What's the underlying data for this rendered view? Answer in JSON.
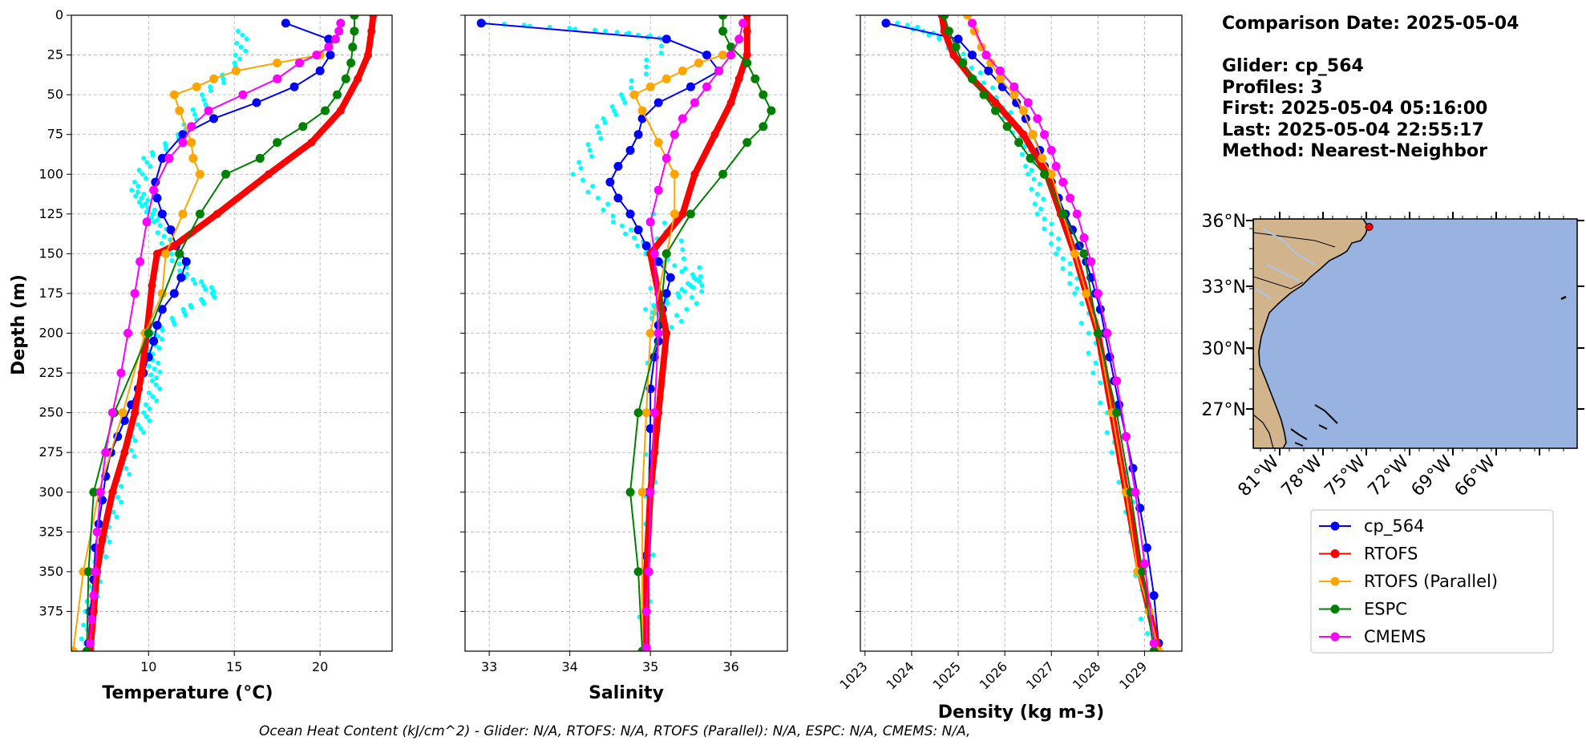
{
  "info": {
    "comparison_date": "Comparison Date: 2025-05-04",
    "glider": "Glider: cp_564",
    "profiles": "Profiles: 3",
    "first": "First: 2025-05-04 05:16:00",
    "last": "Last: 2025-05-04 22:55:17",
    "method": "Method: Nearest-Neighbor"
  },
  "ohc_text": "Ocean Heat Content (kJ/cm^2) - Glider: N/A,  RTOFS: N/A,  RTOFS (Parallel): N/A,  ESPC: N/A,  CMEMS: N/A,",
  "colors": {
    "cp_564": "#0000ff",
    "RTOFS": "#ff0000",
    "RTOFS (Parallel)": "#ffa500",
    "ESPC": "#008000",
    "CMEMS": "#ff00ff",
    "glider_raw": "#00ffff",
    "ocean": "#99b3e0",
    "land": "#d2b48c",
    "river": "#aac4ee"
  },
  "legend": [
    "cp_564",
    "RTOFS",
    "RTOFS (Parallel)",
    "ESPC",
    "CMEMS"
  ],
  "map": {
    "lat_labels": [
      "36°N",
      "33°N",
      "30°N",
      "27°N"
    ],
    "lon_labels": [
      "81°W",
      "78°W",
      "75°W",
      "72°W",
      "69°W",
      "66°W"
    ],
    "glider_location": {
      "lon": -74.8,
      "lat": 35.7
    }
  },
  "chart_data": [
    {
      "type": "line",
      "xlabel": "Temperature (°C)",
      "ylabel": "Depth (m)",
      "xlim": [
        5.5,
        24.2
      ],
      "ylim": [
        400,
        0
      ],
      "xticks": [
        10,
        15,
        20
      ],
      "yticks": [
        0,
        25,
        50,
        75,
        100,
        125,
        150,
        175,
        200,
        225,
        250,
        275,
        300,
        325,
        350,
        375
      ],
      "grid": true,
      "glider_raw": {
        "name": "cp_564 raw",
        "x": [
          15.5,
          15.3,
          13.4,
          12.0,
          10.0,
          9.3,
          9.9,
          10.6,
          11.2,
          12.4,
          14.0,
          12.3,
          10.6,
          10.2,
          10.5,
          10.0,
          9.1,
          8.3,
          7.6,
          7.0,
          6.6,
          6.3
        ],
        "y": [
          10,
          30,
          50,
          75,
          90,
          110,
          120,
          130,
          148,
          165,
          175,
          185,
          200,
          215,
          230,
          250,
          270,
          300,
          325,
          350,
          375,
          398
        ]
      },
      "series": [
        {
          "name": "cp_564",
          "x": [
            18.0,
            20.5,
            20.6,
            20.0,
            18.5,
            16.3,
            13.8,
            12.0,
            10.8,
            10.4,
            10.5,
            10.8,
            11.3,
            11.6,
            12.2,
            11.9,
            11.5,
            10.8,
            10.5,
            10.3,
            10.0,
            9.7,
            9.4,
            9.0,
            8.6,
            8.2,
            7.8,
            7.5,
            7.3,
            7.1,
            6.9,
            6.8,
            6.6,
            6.5
          ],
          "y": [
            5,
            15,
            25,
            35,
            45,
            55,
            65,
            75,
            90,
            105,
            115,
            125,
            135,
            145,
            155,
            165,
            175,
            185,
            195,
            205,
            215,
            225,
            235,
            245,
            255,
            265,
            275,
            290,
            305,
            320,
            335,
            355,
            375,
            395
          ]
        },
        {
          "name": "RTOFS",
          "x": [
            23.1,
            23.0,
            22.8,
            22.2,
            21.2,
            19.5,
            17.0,
            14.0,
            11.5,
            10.5,
            10.2,
            9.9,
            9.6,
            9.2,
            8.6,
            7.9,
            7.3,
            7.0,
            6.8,
            6.6
          ],
          "y": [
            0,
            10,
            25,
            40,
            60,
            80,
            100,
            125,
            145,
            150,
            170,
            200,
            225,
            250,
            275,
            300,
            330,
            350,
            375,
            400
          ]
        },
        {
          "name": "RTOFS (Parallel)",
          "x": [
            20.0,
            17.5,
            15.1,
            13.8,
            12.8,
            11.5,
            11.8,
            12.5,
            12.6,
            13.0,
            12.0,
            11.0,
            10.8,
            9.8,
            8.5,
            7.1,
            6.2,
            5.6
          ],
          "y": [
            25,
            30,
            35,
            40,
            45,
            50,
            60,
            80,
            90,
            100,
            125,
            150,
            175,
            200,
            250,
            300,
            350,
            400
          ]
        },
        {
          "name": "ESPC",
          "x": [
            22.0,
            22.0,
            21.9,
            21.8,
            21.5,
            21.0,
            20.3,
            19.0,
            17.5,
            16.5,
            14.5,
            13.0,
            11.8,
            10.0,
            8.0,
            6.8,
            6.5,
            6.4
          ],
          "y": [
            0,
            10,
            20,
            30,
            40,
            50,
            60,
            70,
            80,
            90,
            100,
            125,
            150,
            200,
            250,
            300,
            350,
            400
          ]
        },
        {
          "name": "CMEMS",
          "x": [
            21.2,
            21.1,
            20.9,
            20.5,
            19.8,
            18.8,
            17.5,
            15.5,
            13.5,
            12.5,
            12.0,
            11.2,
            10.3,
            9.9,
            9.5,
            9.2,
            8.8,
            8.4,
            7.9,
            7.5,
            7.2,
            7.0,
            6.9,
            6.8,
            6.7,
            6.6
          ],
          "y": [
            5,
            10,
            15,
            20,
            25,
            30,
            40,
            50,
            60,
            70,
            80,
            90,
            110,
            130,
            155,
            175,
            200,
            225,
            250,
            275,
            300,
            325,
            350,
            365,
            380,
            395
          ]
        }
      ]
    },
    {
      "type": "line",
      "xlabel": "Salinity",
      "xlim": [
        32.7,
        36.7
      ],
      "ylim": [
        400,
        0
      ],
      "xticks": [
        33,
        34,
        35,
        36
      ],
      "grid": true,
      "glider_raw": {
        "name": "cp_564 raw",
        "x": [
          33.0,
          34.5,
          35.2,
          34.7,
          34.4,
          34.1,
          34.6,
          35.0,
          35.6,
          35.4,
          35.0,
          35.2,
          35.7,
          35.1,
          35.0,
          35.0,
          34.9
        ],
        "y": [
          5,
          10,
          15,
          50,
          70,
          100,
          130,
          150,
          165,
          175,
          185,
          200,
          170,
          125,
          250,
          320,
          398
        ]
      },
      "series": [
        {
          "name": "cp_564",
          "x": [
            32.9,
            35.2,
            35.7,
            35.85,
            35.5,
            35.1,
            34.9,
            34.85,
            34.75,
            34.6,
            34.5,
            34.6,
            34.75,
            34.85,
            34.95,
            35.1,
            35.25,
            35.2,
            35.15,
            35.1,
            35.1,
            35.05,
            35.0,
            35.0,
            34.98,
            34.95,
            34.95,
            34.95
          ],
          "y": [
            5,
            15,
            25,
            35,
            45,
            55,
            65,
            75,
            85,
            95,
            105,
            115,
            125,
            135,
            145,
            155,
            165,
            175,
            185,
            195,
            205,
            215,
            235,
            260,
            300,
            340,
            375,
            398
          ]
        },
        {
          "name": "RTOFS",
          "x": [
            36.2,
            36.2,
            36.2,
            36.1,
            36.0,
            35.8,
            35.55,
            35.4,
            35.0,
            35.1,
            35.2,
            35.1,
            35.05,
            35.0,
            34.95,
            34.95,
            34.95
          ],
          "y": [
            0,
            10,
            25,
            40,
            55,
            75,
            100,
            125,
            150,
            175,
            200,
            250,
            275,
            300,
            350,
            375,
            400
          ]
        },
        {
          "name": "RTOFS (Parallel)",
          "x": [
            35.9,
            35.6,
            35.4,
            35.2,
            35.0,
            34.8,
            34.9,
            35.1,
            35.3,
            35.3,
            35.2,
            35.0,
            34.95,
            34.9,
            34.9
          ],
          "y": [
            25,
            30,
            35,
            40,
            45,
            50,
            60,
            80,
            100,
            125,
            150,
            200,
            250,
            300,
            400
          ]
        },
        {
          "name": "ESPC",
          "x": [
            35.9,
            35.9,
            36.0,
            36.2,
            36.3,
            36.4,
            36.5,
            36.4,
            36.2,
            35.9,
            35.5,
            35.2,
            35.1,
            34.85,
            34.75,
            34.85,
            34.9
          ],
          "y": [
            0,
            10,
            20,
            30,
            40,
            50,
            60,
            70,
            80,
            100,
            125,
            150,
            200,
            250,
            300,
            350,
            400
          ]
        },
        {
          "name": "CMEMS",
          "x": [
            36.15,
            36.1,
            36.0,
            35.85,
            35.7,
            35.55,
            35.4,
            35.3,
            35.2,
            35.1,
            35.0,
            35.05,
            35.1,
            35.05,
            35.0,
            34.98,
            34.95,
            34.95
          ],
          "y": [
            5,
            15,
            25,
            35,
            45,
            55,
            65,
            75,
            90,
            110,
            130,
            150,
            200,
            250,
            300,
            350,
            375,
            398
          ]
        }
      ]
    },
    {
      "type": "line",
      "xlabel": "Density (kg m-3)",
      "xlim": [
        1022.9,
        1029.8
      ],
      "ylim": [
        400,
        0
      ],
      "xticks": [
        1023,
        1024,
        1025,
        1026,
        1027,
        1028,
        1029
      ],
      "grid": true,
      "glider_raw": {
        "name": "cp_564 raw",
        "x": [
          1023.8,
          1024.7,
          1025.2,
          1025.9,
          1026.4,
          1026.6,
          1026.8,
          1027.2,
          1027.6,
          1028.0,
          1028.4,
          1028.8,
          1029.1
        ],
        "y": [
          5,
          15,
          30,
          55,
          80,
          100,
          125,
          150,
          175,
          225,
          275,
          325,
          398
        ]
      },
      "series": [
        {
          "name": "cp_564",
          "x": [
            1023.45,
            1025.0,
            1025.3,
            1025.65,
            1025.95,
            1026.25,
            1026.45,
            1026.6,
            1026.75,
            1026.85,
            1027.0,
            1027.15,
            1027.3,
            1027.45,
            1027.6,
            1027.75,
            1027.85,
            1027.95,
            1028.05,
            1028.15,
            1028.25,
            1028.35,
            1028.45,
            1028.6,
            1028.75,
            1028.9,
            1029.05,
            1029.2,
            1029.3
          ],
          "y": [
            5,
            15,
            25,
            35,
            45,
            55,
            65,
            75,
            85,
            95,
            105,
            115,
            125,
            135,
            145,
            155,
            165,
            175,
            185,
            200,
            215,
            230,
            245,
            265,
            285,
            310,
            335,
            365,
            395
          ]
        },
        {
          "name": "RTOFS",
          "x": [
            1024.65,
            1024.7,
            1024.9,
            1025.3,
            1025.8,
            1026.4,
            1026.9,
            1027.2,
            1027.5,
            1027.75,
            1028.0,
            1028.3,
            1028.6,
            1028.9,
            1029.1,
            1029.3
          ],
          "y": [
            0,
            10,
            25,
            40,
            55,
            75,
            100,
            125,
            150,
            175,
            200,
            250,
            300,
            350,
            375,
            400
          ]
        },
        {
          "name": "RTOFS (Parallel)",
          "x": [
            1025.2,
            1025.35,
            1025.5,
            1025.7,
            1025.9,
            1026.2,
            1026.4,
            1026.6,
            1026.8,
            1027.0,
            1027.25,
            1027.5,
            1027.75,
            1028.0,
            1028.3,
            1028.6,
            1028.85,
            1029.1,
            1029.3
          ],
          "y": [
            0,
            10,
            20,
            30,
            40,
            50,
            60,
            75,
            90,
            100,
            125,
            150,
            175,
            200,
            250,
            300,
            350,
            375,
            400
          ]
        },
        {
          "name": "ESPC",
          "x": [
            1024.7,
            1024.8,
            1024.95,
            1025.1,
            1025.3,
            1025.55,
            1025.8,
            1026.05,
            1026.3,
            1026.55,
            1026.85,
            1027.25,
            1027.7,
            1028.0,
            1028.4,
            1028.7,
            1028.95,
            1029.2
          ],
          "y": [
            0,
            10,
            20,
            30,
            40,
            50,
            60,
            70,
            80,
            90,
            100,
            125,
            150,
            200,
            250,
            300,
            350,
            400
          ]
        },
        {
          "name": "CMEMS",
          "x": [
            1025.3,
            1025.6,
            1025.9,
            1026.2,
            1026.5,
            1026.7,
            1026.85,
            1027.0,
            1027.1,
            1027.25,
            1027.4,
            1027.55,
            1027.7,
            1027.85,
            1028.0,
            1028.2,
            1028.4,
            1028.6,
            1028.8,
            1029.0,
            1029.2
          ],
          "y": [
            5,
            25,
            35,
            45,
            55,
            65,
            75,
            85,
            95,
            105,
            115,
            125,
            140,
            155,
            175,
            200,
            230,
            265,
            300,
            345,
            395
          ]
        }
      ]
    }
  ]
}
